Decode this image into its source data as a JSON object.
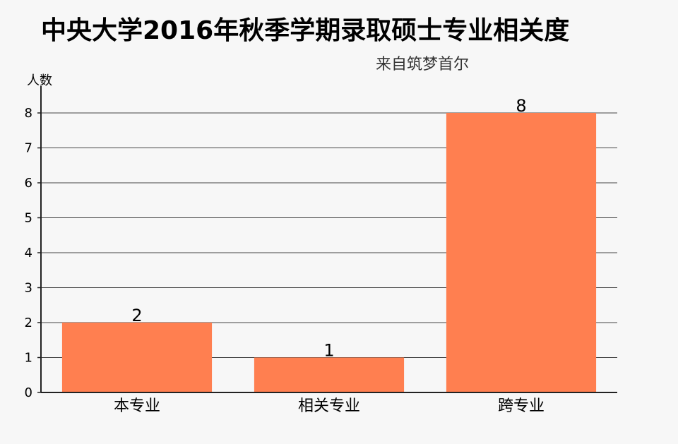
{
  "chart_data": {
    "type": "bar",
    "title": "中央大学2016年秋季学期录取硕士专业相关度",
    "subtitle": "来自筑梦首尔",
    "xlabel": "",
    "ylabel": "人数",
    "categories": [
      "本专业",
      "相关专业",
      "跨专业"
    ],
    "values": [
      2,
      1,
      8
    ],
    "ylim": [
      0,
      8
    ],
    "yticks": [
      0,
      1,
      2,
      3,
      4,
      5,
      6,
      7,
      8
    ],
    "grid": true,
    "bar_color": "#ff7f50"
  }
}
